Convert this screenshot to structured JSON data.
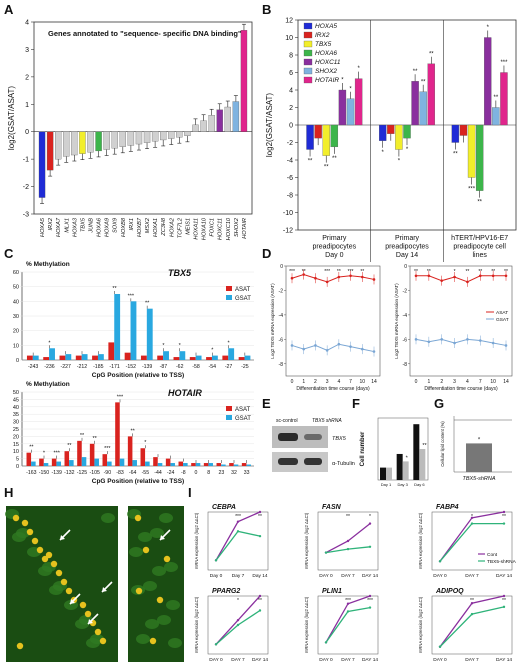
{
  "chart_data": [
    {
      "panel": "A",
      "type": "bar",
      "title": "Genes annotated to \"sequence- specific DNA binding\"",
      "ylabel": "log2(GSAT/ASAT)",
      "ylim": [
        -3,
        4
      ],
      "yticks": [
        "4",
        "3",
        "2",
        "1",
        "0",
        "-1",
        "-2",
        "-3"
      ],
      "categories": [
        "HOXA5",
        "IRX2",
        "HOXA7",
        "MLX1",
        "HOXA3",
        "TBX5",
        "JUNB",
        "HOXA6",
        "HOXA9",
        "SOX9",
        "HOXB8",
        "IRX1",
        "HOXB7",
        "MSX2",
        "HOXA1",
        "ZC3H8",
        "HOXA2",
        "TCF7L2",
        "MEIS1",
        "HOXA11",
        "HOXA10",
        "FOXC1",
        "HOXC11",
        "HOXC10",
        "SHOX2",
        "HOTAIR"
      ],
      "values": [
        -2.4,
        -1.4,
        -1.0,
        -0.9,
        -0.85,
        -0.8,
        -0.75,
        -0.7,
        -0.65,
        -0.6,
        -0.55,
        -0.5,
        -0.45,
        -0.4,
        -0.35,
        -0.3,
        -0.25,
        -0.2,
        -0.15,
        0.25,
        0.4,
        0.6,
        0.8,
        0.9,
        1.1,
        3.7
      ],
      "colors": [
        "#1f2bd6",
        "#d9231f",
        "#d0d0d0",
        "#d0d0d0",
        "#d0d0d0",
        "#f2ee2b",
        "#d0d0d0",
        "#3cb54a",
        "#d0d0d0",
        "#d0d0d0",
        "#d0d0d0",
        "#d0d0d0",
        "#d0d0d0",
        "#d0d0d0",
        "#d0d0d0",
        "#d0d0d0",
        "#d0d0d0",
        "#d0d0d0",
        "#d0d0d0",
        "#d0d0d0",
        "#d0d0d0",
        "#d0d0d0",
        "#8a2f9e",
        "#d0d0d0",
        "#7fb3e0",
        "#e0258c"
      ]
    },
    {
      "panel": "B",
      "type": "bar",
      "ylabel": "log2(GSAT/ASAT)",
      "ylim": [
        -12,
        12
      ],
      "yticks": [
        "12",
        "10",
        "8",
        "6",
        "4",
        "2",
        "0",
        "-2",
        "-4",
        "-6",
        "-8",
        "-10",
        "-12"
      ],
      "series": [
        {
          "name": "HOXA5",
          "color": "#1f2bd6"
        },
        {
          "name": "IRX2",
          "color": "#d9231f"
        },
        {
          "name": "TBX5",
          "color": "#f2ee2b"
        },
        {
          "name": "HOXA6",
          "color": "#3cb54a"
        },
        {
          "name": "HOXC11",
          "color": "#8a2f9e"
        },
        {
          "name": "SHOX2",
          "color": "#7fb3e0"
        },
        {
          "name": "HOTAIR",
          "color": "#e0258c"
        }
      ],
      "groups": [
        {
          "label": [
            "Primary",
            "preadipocytes",
            "Day 0"
          ],
          "values": [
            -2.8,
            -1.5,
            -3.5,
            -2.5,
            4.0,
            3.0,
            5.3
          ],
          "stars": [
            "**",
            "",
            "**",
            "**",
            "*",
            "*",
            "*"
          ]
        },
        {
          "label": [
            "Primary",
            "preadipocytes",
            "Day 14"
          ],
          "values": [
            -1.8,
            -1.0,
            -2.8,
            -1.5,
            5.0,
            3.8,
            7.0
          ],
          "stars": [
            "*",
            "",
            "*",
            "*",
            "**",
            "**",
            "**"
          ]
        },
        {
          "label": [
            "hTERT/HPV16-E7",
            "preadipocyte cell",
            "lines"
          ],
          "values": [
            -2.0,
            -1.2,
            -6.0,
            -7.5,
            10.0,
            2.0,
            6.0
          ],
          "stars": [
            "**",
            "",
            "***",
            "**",
            "*",
            "**",
            "***"
          ]
        }
      ]
    },
    {
      "panel": "C",
      "type": "bar",
      "title": "TBX5",
      "ylabel": "% Methylation",
      "xlabel": "CpG Position (relative to TSS)",
      "ylim": [
        0,
        60
      ],
      "yticks": [
        "60",
        "50",
        "40",
        "30",
        "20",
        "10",
        "0"
      ],
      "series": [
        {
          "name": "ASAT",
          "color": "#d9231f"
        },
        {
          "name": "GSAT",
          "color": "#29a8e0"
        }
      ],
      "categories": [
        "-243",
        "-236",
        "-227",
        "-212",
        "-185",
        "-171",
        "-152",
        "-139",
        "-87",
        "-62",
        "-58",
        "-54",
        "-27",
        "-25"
      ],
      "asat": [
        3,
        2,
        3,
        3,
        3,
        12,
        5,
        3,
        3,
        2,
        2,
        2,
        3,
        2
      ],
      "gsat": [
        3,
        8,
        4,
        4,
        4,
        45,
        40,
        35,
        6,
        6,
        3,
        3,
        8,
        3
      ],
      "stars": [
        "",
        "*",
        "",
        "",
        "",
        "**",
        "***",
        "**",
        "*",
        "*",
        "",
        "*",
        "*",
        ""
      ]
    },
    {
      "panel": "C",
      "type": "bar",
      "title": "HOTAIR",
      "ylabel": "% Methylation",
      "xlabel": "CpG Position (relative to TSS)",
      "ylim": [
        0,
        50
      ],
      "yticks": [
        "50",
        "45",
        "40",
        "35",
        "30",
        "25",
        "20",
        "15",
        "10",
        "5",
        "0"
      ],
      "series": [
        {
          "name": "ASAT",
          "color": "#d9231f"
        },
        {
          "name": "GSAT",
          "color": "#29a8e0"
        }
      ],
      "categories": [
        "-163",
        "-150",
        "-139",
        "-132",
        "-125",
        "-105",
        "-90",
        "-83",
        "-64",
        "-55",
        "-44",
        "-24",
        "-8",
        "0",
        "8",
        "23",
        "32",
        "33"
      ],
      "asat": [
        9,
        5,
        5,
        10,
        17,
        15,
        8,
        43,
        20,
        12,
        6,
        5,
        3,
        2,
        2,
        2,
        2,
        2
      ],
      "gsat": [
        3,
        2,
        3,
        4,
        6,
        5,
        3,
        5,
        4,
        3,
        2,
        2,
        2,
        2,
        2,
        1,
        1,
        1
      ],
      "stars": [
        "**",
        "*",
        "***",
        "**",
        "**",
        "**",
        "***",
        "***",
        "**",
        "*",
        "",
        "",
        "",
        "",
        "",
        "",
        "",
        ""
      ]
    },
    {
      "panel": "D",
      "type": "line",
      "ylabel": "Log2 TBX5 mRNA expression (ASAT)",
      "xlabel": "Differentiation time course (days)",
      "x": [
        "0",
        "1",
        "2",
        "3",
        "4",
        "7",
        "10",
        "14"
      ],
      "series": [
        {
          "name": "ASAT",
          "color": "#d9231f",
          "values": [
            -1.0,
            -0.7,
            -1.0,
            -1.3,
            -0.9,
            -0.8,
            -0.9,
            -1.1
          ]
        },
        {
          "name": "GSAT",
          "color": "#7aa6d4",
          "values": [
            -6.5,
            -6.8,
            -6.5,
            -6.9,
            -6.4,
            -6.6,
            -6.8,
            -7.0
          ]
        }
      ],
      "stars": [
        "***",
        "**",
        "",
        "***",
        "**",
        "***",
        "**",
        ""
      ],
      "ylim": [
        -9,
        0
      ]
    },
    {
      "panel": "D",
      "type": "line",
      "ylabel": "Log2 TBX5 mRNA expression (ASAT)",
      "xlabel": "Differentiation time course (days)",
      "x": [
        "0",
        "1",
        "2",
        "3",
        "4",
        "7",
        "10",
        "14"
      ],
      "series": [
        {
          "name": "ASAT",
          "color": "#d9231f",
          "values": [
            -0.8,
            -0.8,
            -1.2,
            -0.9,
            -1.3,
            -0.8,
            -0.8,
            -0.8
          ]
        },
        {
          "name": "GSAT",
          "color": "#7aa6d4",
          "values": [
            -6.0,
            -6.2,
            -6.0,
            -6.3,
            -6.0,
            -6.1,
            -6.3,
            -6.5
          ]
        }
      ],
      "legend": [
        "ASAT",
        "GSAT"
      ],
      "stars": [
        "**",
        "**",
        "",
        "*",
        "**",
        "**",
        "**",
        "**"
      ],
      "ylim": [
        -9,
        0
      ]
    },
    {
      "panel": "F",
      "type": "bar",
      "ylabel": "Cell number",
      "categories": [
        "Day 1",
        "Day 3",
        "Day 6"
      ],
      "control": [
        2,
        4.2,
        9
      ],
      "sirna": [
        2,
        3,
        5
      ],
      "stars": [
        "",
        "*",
        "**"
      ]
    },
    {
      "panel": "G",
      "type": "bar",
      "ylabel": "Cellular lipid content (%)",
      "ylim": [
        0,
        100
      ],
      "categories": [
        "TBX5-shRNA"
      ],
      "values": [
        55
      ],
      "stars": [
        "*"
      ]
    },
    {
      "panel": "I",
      "type": "line",
      "title": "CEBPA",
      "ylabel": "mRNA expression (log2 ΔΔCt)",
      "x": [
        "Day 0",
        "Day 7",
        "Day 14"
      ],
      "series": [
        {
          "name": "Cont",
          "color": "#8a2f9e",
          "values": [
            -10,
            -2,
            0
          ]
        },
        {
          "name": "TBX5-shRNA",
          "color": "#2fb37a",
          "values": [
            -10,
            -4,
            -5
          ]
        }
      ],
      "stars": [
        "",
        "***",
        "**"
      ],
      "ylim": [
        -12,
        0
      ]
    },
    {
      "panel": "I",
      "type": "line",
      "title": "FASN",
      "ylabel": "mRNA expression (log2 ΔΔCt)",
      "x": [
        "DAY 0",
        "DAY 7",
        "DAY 14"
      ],
      "series": [
        {
          "name": "Cont",
          "color": "#8a2f9e",
          "values": [
            -3.5,
            -2.5,
            -1.0
          ]
        },
        {
          "name": "TBX5-shRNA",
          "color": "#2fb37a",
          "values": [
            -3.5,
            -3.2,
            -3.0
          ]
        }
      ],
      "stars": [
        "",
        "**",
        "*"
      ],
      "ylim": [
        -5,
        0
      ]
    },
    {
      "panel": "I",
      "type": "line",
      "title": "FABP4",
      "ylabel": "mRNA expression (log2 ΔΔCt)",
      "x": [
        "DAY 0",
        "DAY 7",
        "DAY 14"
      ],
      "series": [
        {
          "name": "Cont",
          "color": "#8a2f9e",
          "values": [
            -17,
            -2,
            0
          ]
        },
        {
          "name": "TBX5-shRNA",
          "color": "#2fb37a",
          "values": [
            -17,
            -4,
            -4
          ]
        }
      ],
      "legend": [
        "Cont",
        "TBX5-shRNA"
      ],
      "stars": [
        "",
        "*",
        "**"
      ],
      "ylim": [
        -20,
        0
      ]
    },
    {
      "panel": "I",
      "type": "line",
      "title": "PPARG2",
      "ylabel": "mRNA expression (log2 ΔΔCt)",
      "x": [
        "DAY 0",
        "DAY 7",
        "DAY 14"
      ],
      "series": [
        {
          "name": "Cont",
          "color": "#8a2f9e",
          "values": [
            -10,
            -5,
            0
          ]
        },
        {
          "name": "TBX5-shRNA",
          "color": "#2fb37a",
          "values": [
            -10,
            -6,
            -3
          ]
        }
      ],
      "stars": [
        "",
        "*",
        "**"
      ],
      "ylim": [
        -12,
        0
      ]
    },
    {
      "panel": "I",
      "type": "line",
      "title": "PLIN1",
      "ylabel": "mRNA expression (log2 ΔΔCt)",
      "x": [
        "DAY 0",
        "DAY 7",
        "DAY 14"
      ],
      "series": [
        {
          "name": "Cont",
          "color": "#8a2f9e",
          "values": [
            -12,
            -2,
            0
          ]
        },
        {
          "name": "TBX5-shRNA",
          "color": "#2fb37a",
          "values": [
            -12,
            -4,
            -3
          ]
        }
      ],
      "stars": [
        "",
        "***",
        "***"
      ],
      "ylim": [
        -15,
        0
      ]
    },
    {
      "panel": "I",
      "type": "line",
      "title": "ADIPOQ",
      "ylabel": "mRNA expression (log2 ΔΔCt)",
      "x": [
        "DAY 0",
        "DAY 7",
        "DAY 14"
      ],
      "series": [
        {
          "name": "Cont",
          "color": "#8a2f9e",
          "values": [
            -14,
            -2,
            0
          ]
        },
        {
          "name": "TBX5-shRNA",
          "color": "#2fb37a",
          "values": [
            -14,
            -5,
            -3
          ]
        }
      ],
      "stars": [
        "",
        "**",
        "**"
      ],
      "ylim": [
        -16,
        0
      ]
    }
  ],
  "panels": {
    "A": "A",
    "B": "B",
    "C": "C",
    "D": "D",
    "E": "E",
    "F": "F",
    "G": "G",
    "H": "H",
    "I": "I"
  },
  "western": {
    "lanes": [
      "sc-control",
      "TBX5 shRNA"
    ],
    "bands": [
      "TBX5",
      "α-Tubulin"
    ]
  },
  "micrographs": {
    "count": 2
  }
}
